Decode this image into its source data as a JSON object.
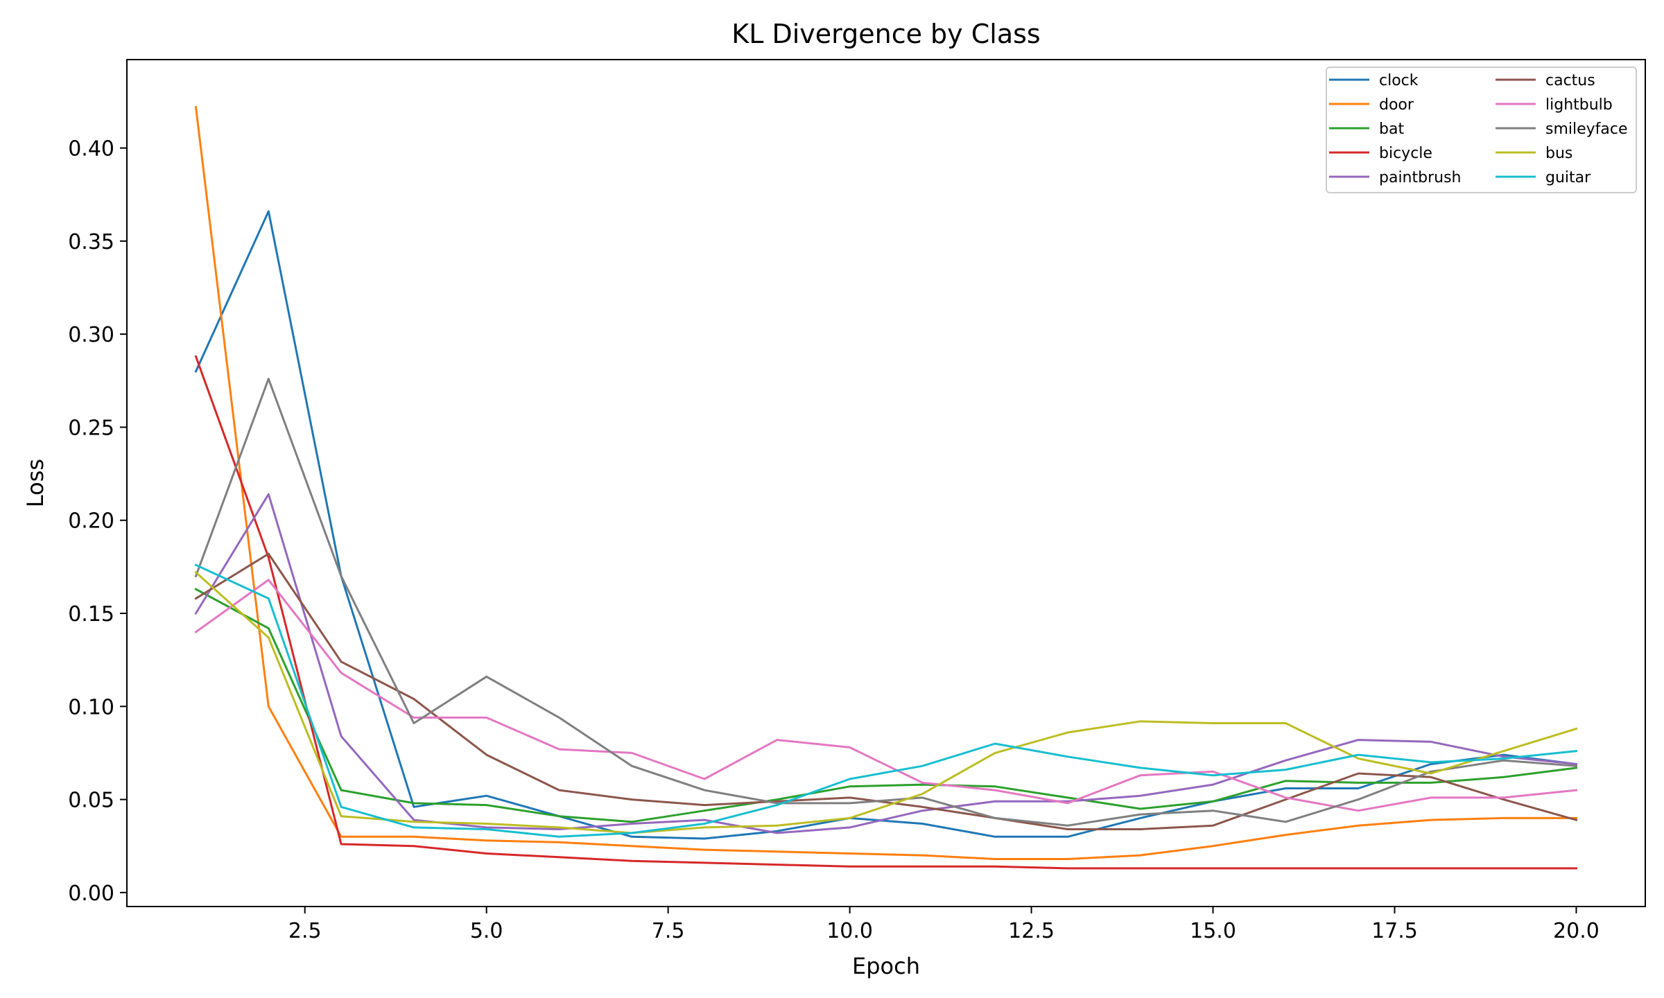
{
  "chart_data": {
    "type": "line",
    "title": "KL Divergence by Class",
    "xlabel": "Epoch",
    "ylabel": "Loss",
    "xlim": [
      0.05,
      20.95
    ],
    "ylim": [
      -0.0075,
      0.4475
    ],
    "xticks": [
      2.5,
      5.0,
      7.5,
      10.0,
      12.5,
      15.0,
      17.5,
      20.0
    ],
    "xtick_labels": [
      "2.5",
      "5.0",
      "7.5",
      "10.0",
      "12.5",
      "15.0",
      "17.5",
      "20.0"
    ],
    "yticks": [
      0.0,
      0.05,
      0.1,
      0.15,
      0.2,
      0.25,
      0.3,
      0.35,
      0.4
    ],
    "ytick_labels": [
      "0.00",
      "0.05",
      "0.10",
      "0.15",
      "0.20",
      "0.25",
      "0.30",
      "0.35",
      "0.40"
    ],
    "grid": false,
    "legend_position": "top-right",
    "legend_columns": 2,
    "x": [
      1,
      2,
      3,
      4,
      5,
      6,
      7,
      8,
      9,
      10,
      11,
      12,
      13,
      14,
      15,
      16,
      17,
      18,
      19,
      20
    ],
    "series": [
      {
        "name": "clock",
        "color": "#1f77b4",
        "values": [
          0.28,
          0.366,
          0.17,
          0.046,
          0.052,
          0.041,
          0.03,
          0.029,
          0.033,
          0.04,
          0.037,
          0.03,
          0.03,
          0.04,
          0.049,
          0.056,
          0.056,
          0.069,
          0.074,
          0.069
        ]
      },
      {
        "name": "door",
        "color": "#ff7f0e",
        "values": [
          0.422,
          0.1,
          0.03,
          0.03,
          0.028,
          0.027,
          0.025,
          0.023,
          0.022,
          0.021,
          0.02,
          0.018,
          0.018,
          0.02,
          0.025,
          0.031,
          0.036,
          0.039,
          0.04,
          0.04
        ]
      },
      {
        "name": "bat",
        "color": "#2ca02c",
        "values": [
          0.163,
          0.142,
          0.055,
          0.048,
          0.047,
          0.041,
          0.038,
          0.044,
          0.05,
          0.057,
          0.058,
          0.057,
          0.051,
          0.045,
          0.049,
          0.06,
          0.059,
          0.059,
          0.062,
          0.067
        ]
      },
      {
        "name": "bicycle",
        "color": "#d62728",
        "values": [
          0.288,
          0.18,
          0.026,
          0.025,
          0.021,
          0.019,
          0.017,
          0.016,
          0.015,
          0.014,
          0.014,
          0.014,
          0.013,
          0.013,
          0.013,
          0.013,
          0.013,
          0.013,
          0.013,
          0.013
        ]
      },
      {
        "name": "paintbrush",
        "color": "#9467bd",
        "values": [
          0.15,
          0.214,
          0.084,
          0.039,
          0.035,
          0.034,
          0.037,
          0.039,
          0.032,
          0.035,
          0.044,
          0.049,
          0.049,
          0.052,
          0.058,
          0.071,
          0.082,
          0.081,
          0.073,
          0.069
        ]
      },
      {
        "name": "cactus",
        "color": "#8c564b",
        "values": [
          0.158,
          0.182,
          0.124,
          0.104,
          0.074,
          0.055,
          0.05,
          0.047,
          0.049,
          0.051,
          0.046,
          0.04,
          0.034,
          0.034,
          0.036,
          0.05,
          0.064,
          0.062,
          0.05,
          0.039
        ]
      },
      {
        "name": "lightbulb",
        "color": "#e377c2",
        "values": [
          0.14,
          0.168,
          0.118,
          0.094,
          0.094,
          0.077,
          0.075,
          0.061,
          0.082,
          0.078,
          0.059,
          0.055,
          0.048,
          0.063,
          0.065,
          0.051,
          0.044,
          0.051,
          0.051,
          0.055
        ]
      },
      {
        "name": "smileyface",
        "color": "#7f7f7f",
        "values": [
          0.17,
          0.276,
          0.17,
          0.091,
          0.116,
          0.094,
          0.068,
          0.055,
          0.048,
          0.048,
          0.051,
          0.04,
          0.036,
          0.042,
          0.044,
          0.038,
          0.05,
          0.065,
          0.071,
          0.068
        ]
      },
      {
        "name": "bus",
        "color": "#bcbd22",
        "values": [
          0.172,
          0.137,
          0.041,
          0.038,
          0.037,
          0.035,
          0.032,
          0.035,
          0.036,
          0.04,
          0.053,
          0.075,
          0.086,
          0.092,
          0.091,
          0.091,
          0.072,
          0.064,
          0.076,
          0.088
        ]
      },
      {
        "name": "guitar",
        "color": "#17becf",
        "values": [
          0.176,
          0.158,
          0.046,
          0.035,
          0.034,
          0.03,
          0.032,
          0.037,
          0.047,
          0.061,
          0.068,
          0.08,
          0.073,
          0.067,
          0.063,
          0.066,
          0.074,
          0.07,
          0.072,
          0.076
        ]
      }
    ]
  }
}
